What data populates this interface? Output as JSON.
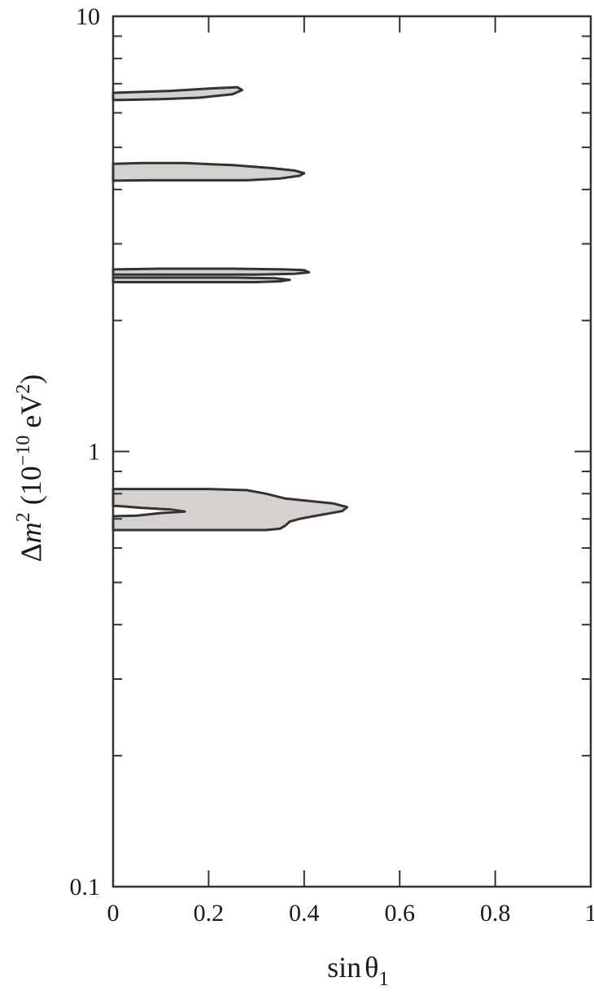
{
  "chart_data": {
    "type": "area",
    "title": "",
    "xlabel": {
      "prefix": "sin",
      "symbol": "θ",
      "subscript": "1"
    },
    "ylabel": {
      "delta_m": "Δ",
      "m": "m",
      "sq": "2",
      "open": " (10",
      "exp": "−10",
      "unit": " eV",
      "close_sq": "2",
      "close": ")"
    },
    "xlim": [
      0,
      1
    ],
    "ylim": [
      0.1,
      10
    ],
    "yscale": "log",
    "grid": false,
    "x_ticks": [
      0,
      0.2,
      0.4,
      0.6,
      0.8,
      1
    ],
    "x_tick_labels": [
      "0",
      "0.2",
      "0.4",
      "0.6",
      "0.8",
      "1"
    ],
    "y_major_ticks": [
      0.1,
      1,
      10
    ],
    "y_tick_labels": [
      "0.1",
      "1",
      "10"
    ],
    "y_minor_ticks": [
      0.2,
      0.3,
      0.4,
      0.5,
      0.6,
      0.7,
      0.8,
      0.9,
      2,
      3,
      4,
      5,
      6,
      7,
      8,
      9
    ],
    "x_minor_ticks": [
      0.2,
      0.4,
      0.6,
      0.8
    ],
    "fill_color": "#d6d0cf",
    "stroke_color": "#333333",
    "regions": [
      {
        "points": [
          [
            0,
            6.67
          ],
          [
            0.05,
            6.7
          ],
          [
            0.12,
            6.74
          ],
          [
            0.2,
            6.82
          ],
          [
            0.26,
            6.87
          ],
          [
            0.27,
            6.77
          ],
          [
            0.25,
            6.62
          ],
          [
            0.18,
            6.5
          ],
          [
            0.1,
            6.45
          ],
          [
            0.04,
            6.43
          ],
          [
            0,
            6.42
          ]
        ]
      },
      {
        "points": [
          [
            0,
            4.58
          ],
          [
            0.06,
            4.6
          ],
          [
            0.15,
            4.6
          ],
          [
            0.25,
            4.55
          ],
          [
            0.33,
            4.48
          ],
          [
            0.38,
            4.42
          ],
          [
            0.4,
            4.36
          ],
          [
            0.39,
            4.3
          ],
          [
            0.35,
            4.24
          ],
          [
            0.28,
            4.2
          ],
          [
            0.18,
            4.2
          ],
          [
            0.08,
            4.2
          ],
          [
            0,
            4.19
          ]
        ]
      },
      {
        "points": [
          [
            0,
            2.62
          ],
          [
            0.1,
            2.63
          ],
          [
            0.25,
            2.63
          ],
          [
            0.36,
            2.62
          ],
          [
            0.4,
            2.61
          ],
          [
            0.41,
            2.58
          ],
          [
            0.38,
            2.56
          ],
          [
            0.3,
            2.55
          ],
          [
            0.18,
            2.55
          ],
          [
            0.08,
            2.55
          ],
          [
            0,
            2.55
          ]
        ]
      },
      {
        "points": [
          [
            0,
            2.51
          ],
          [
            0.1,
            2.51
          ],
          [
            0.25,
            2.51
          ],
          [
            0.34,
            2.5
          ],
          [
            0.37,
            2.48
          ],
          [
            0.35,
            2.46
          ],
          [
            0.3,
            2.45
          ],
          [
            0.18,
            2.45
          ],
          [
            0.05,
            2.45
          ],
          [
            0,
            2.45
          ]
        ]
      },
      {
        "points": [
          [
            0,
            0.82
          ],
          [
            0.1,
            0.82
          ],
          [
            0.2,
            0.82
          ],
          [
            0.28,
            0.815
          ],
          [
            0.32,
            0.8
          ],
          [
            0.36,
            0.78
          ],
          [
            0.41,
            0.77
          ],
          [
            0.46,
            0.76
          ],
          [
            0.49,
            0.745
          ],
          [
            0.48,
            0.73
          ],
          [
            0.45,
            0.72
          ],
          [
            0.42,
            0.71
          ],
          [
            0.39,
            0.7
          ],
          [
            0.37,
            0.69
          ],
          [
            0.36,
            0.675
          ],
          [
            0.35,
            0.665
          ],
          [
            0.32,
            0.66
          ],
          [
            0.25,
            0.66
          ],
          [
            0.15,
            0.66
          ],
          [
            0.06,
            0.66
          ],
          [
            0,
            0.66
          ],
          [
            0,
            0.71
          ],
          [
            0.05,
            0.712
          ],
          [
            0.1,
            0.722
          ],
          [
            0.15,
            0.728
          ],
          [
            0.12,
            0.736
          ],
          [
            0.06,
            0.742
          ],
          [
            0.02,
            0.748
          ],
          [
            0,
            0.75
          ]
        ]
      }
    ]
  }
}
